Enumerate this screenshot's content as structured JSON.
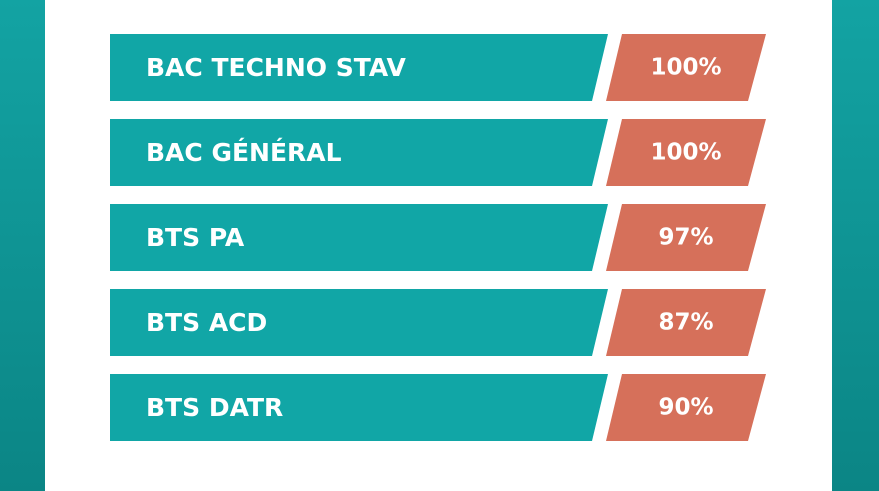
{
  "rows": [
    {
      "label": "BAC TECHNO STAV",
      "value": "100%"
    },
    {
      "label": "BAC GÉNÉRAL",
      "value": "100%"
    },
    {
      "label": "BTS PA",
      "value": "97%"
    },
    {
      "label": "BTS ACD",
      "value": "87%"
    },
    {
      "label": "BTS DATR",
      "value": "90%"
    }
  ]
}
